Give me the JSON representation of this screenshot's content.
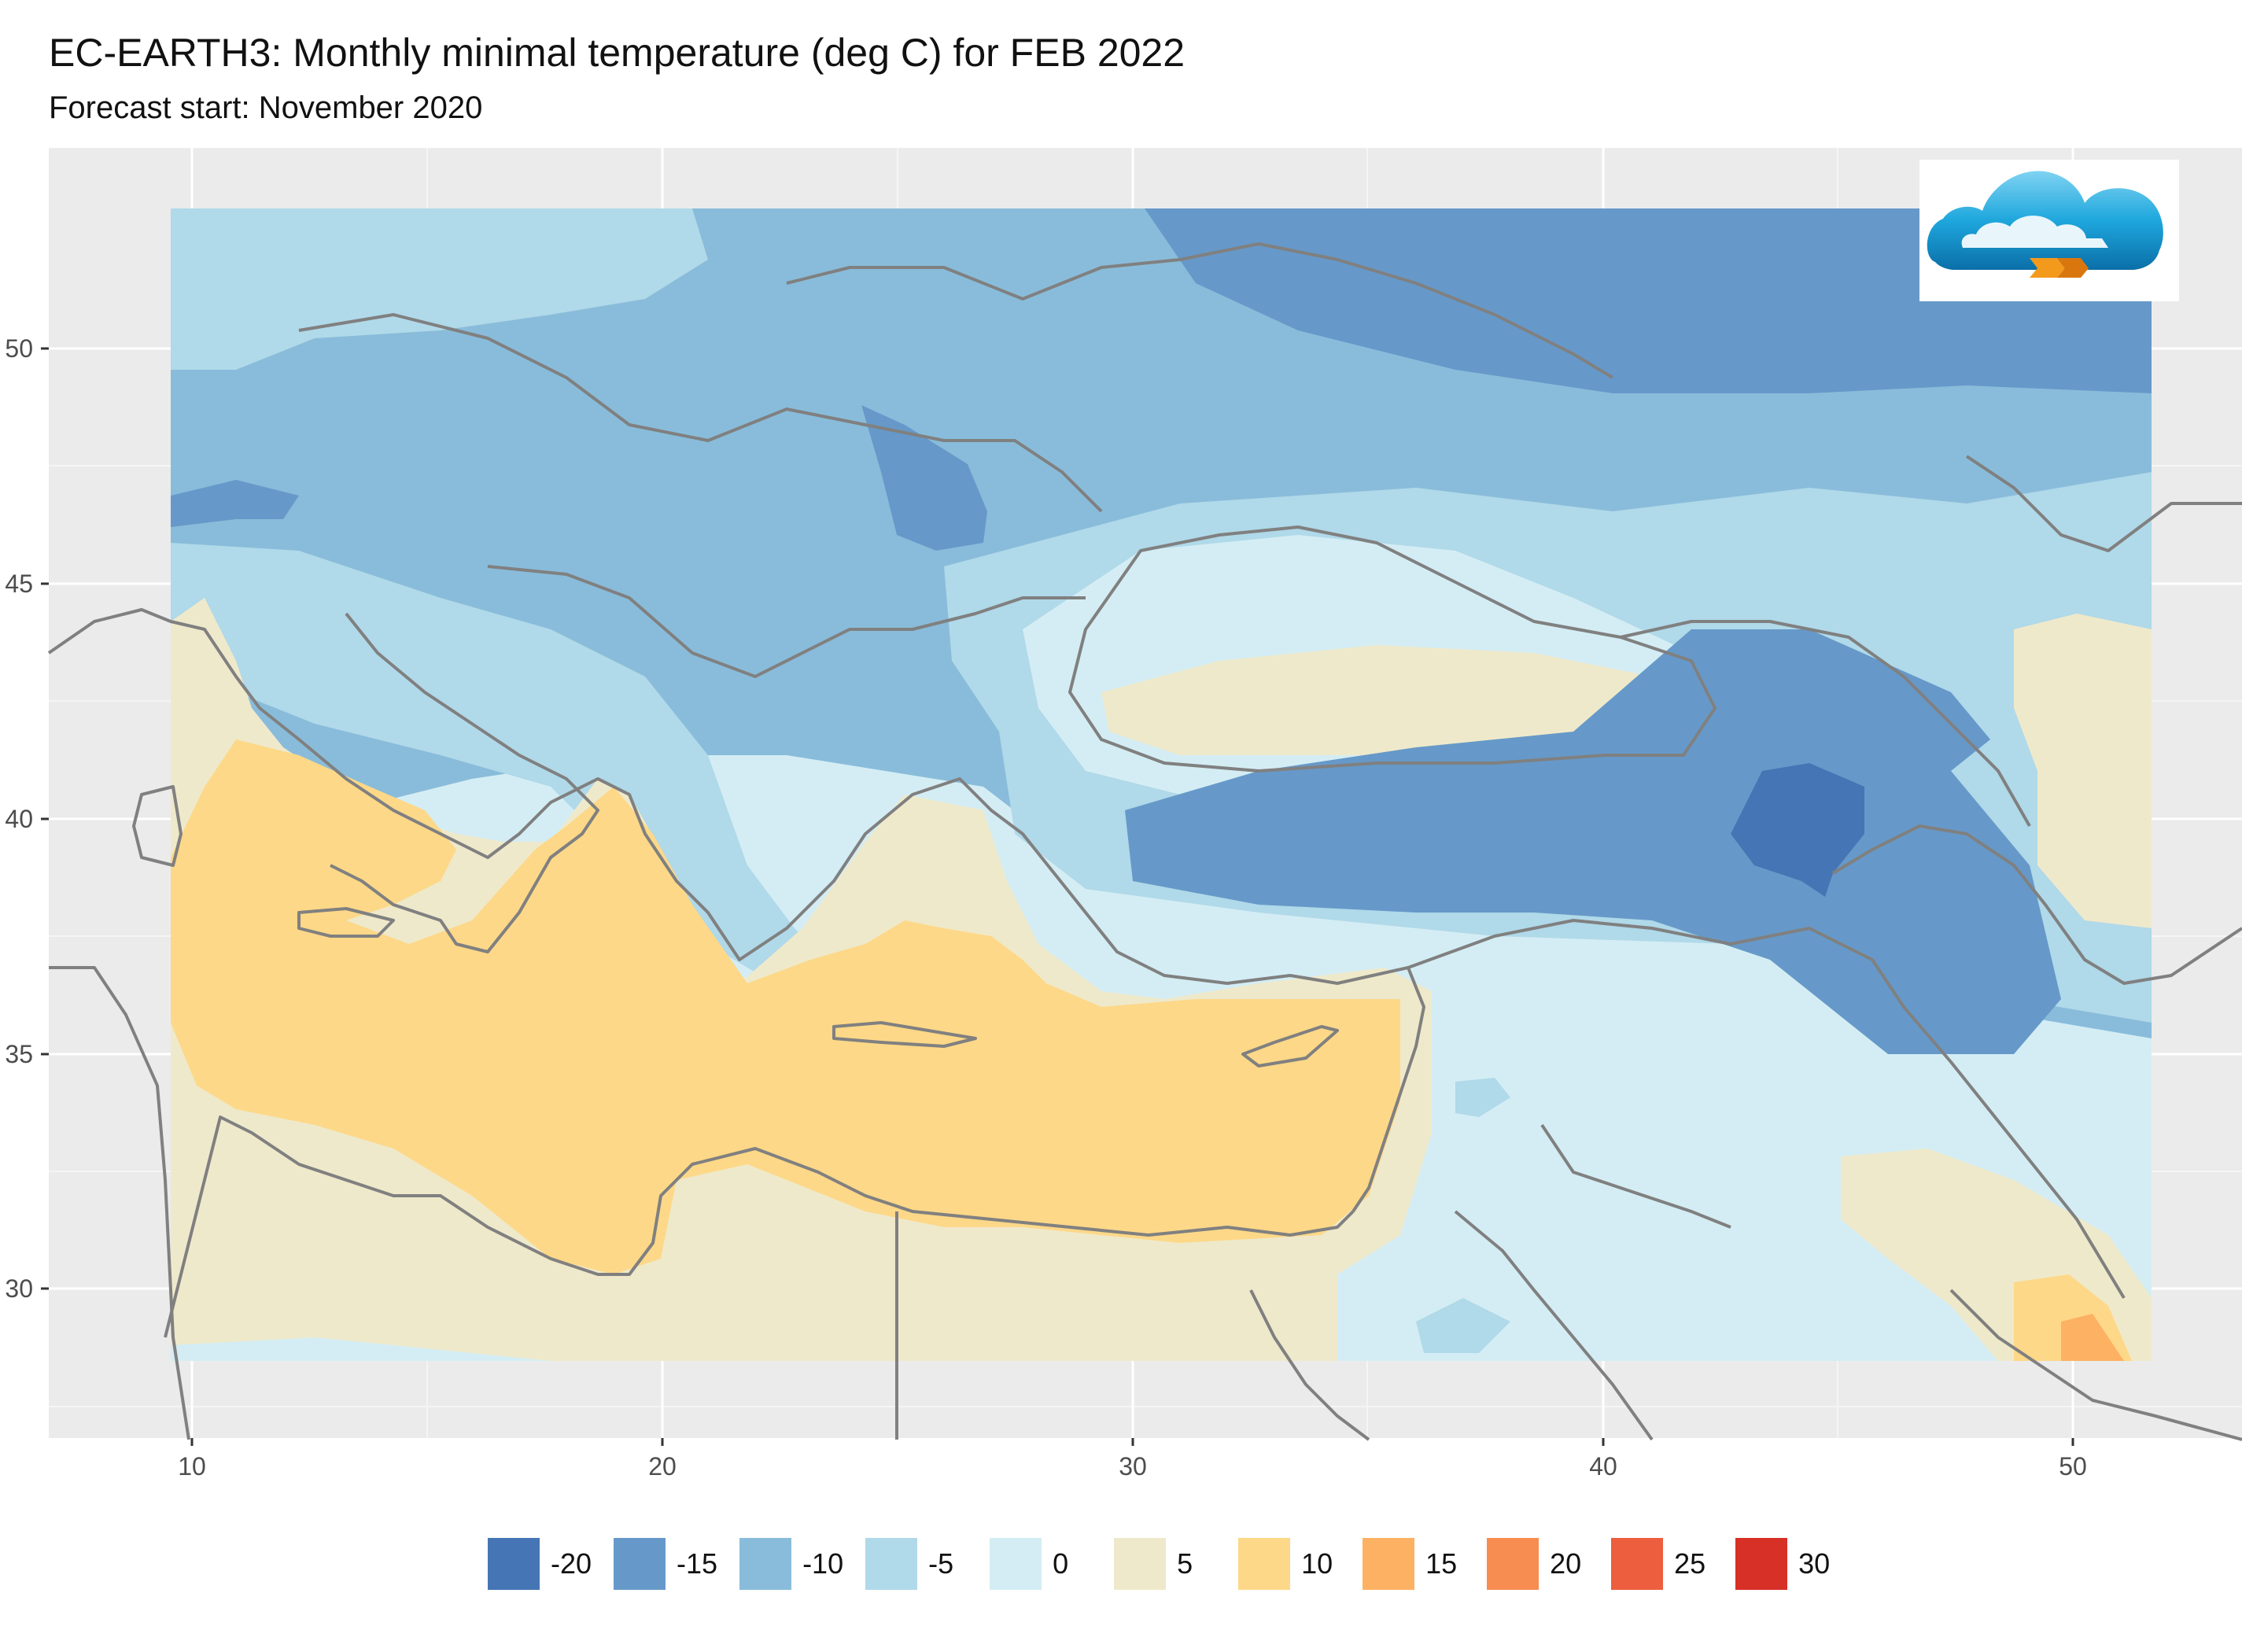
{
  "header": {
    "title": "EC-EARTH3: Monthly minimal temperature (deg C) for FEB 2022",
    "subtitle": "Forecast start: November 2020"
  },
  "map": {
    "x_ticks": [
      "10",
      "20",
      "30",
      "40",
      "50"
    ],
    "y_ticks": [
      "50",
      "45",
      "40",
      "35",
      "30"
    ],
    "panel_color": "#EBEBEB",
    "gridline_color": "#FFFFFF",
    "border_color": "#808080"
  },
  "legend": {
    "items": [
      {
        "label": "-20",
        "color": "#4575B4"
      },
      {
        "label": "-15",
        "color": "#6699C9"
      },
      {
        "label": "-10",
        "color": "#89BCDA"
      },
      {
        "label": "-5",
        "color": "#B0D9E9"
      },
      {
        "label": "0",
        "color": "#D4EDF4"
      },
      {
        "label": "5",
        "color": "#EFE9CB"
      },
      {
        "label": "10",
        "color": "#FDD888"
      },
      {
        "label": "15",
        "color": "#FDB163"
      },
      {
        "label": "20",
        "color": "#F88D52"
      },
      {
        "label": "25",
        "color": "#EC5E3E"
      },
      {
        "label": "30",
        "color": "#D73027"
      }
    ]
  },
  "logo": {
    "icon": "cloud-logo-icon"
  }
}
